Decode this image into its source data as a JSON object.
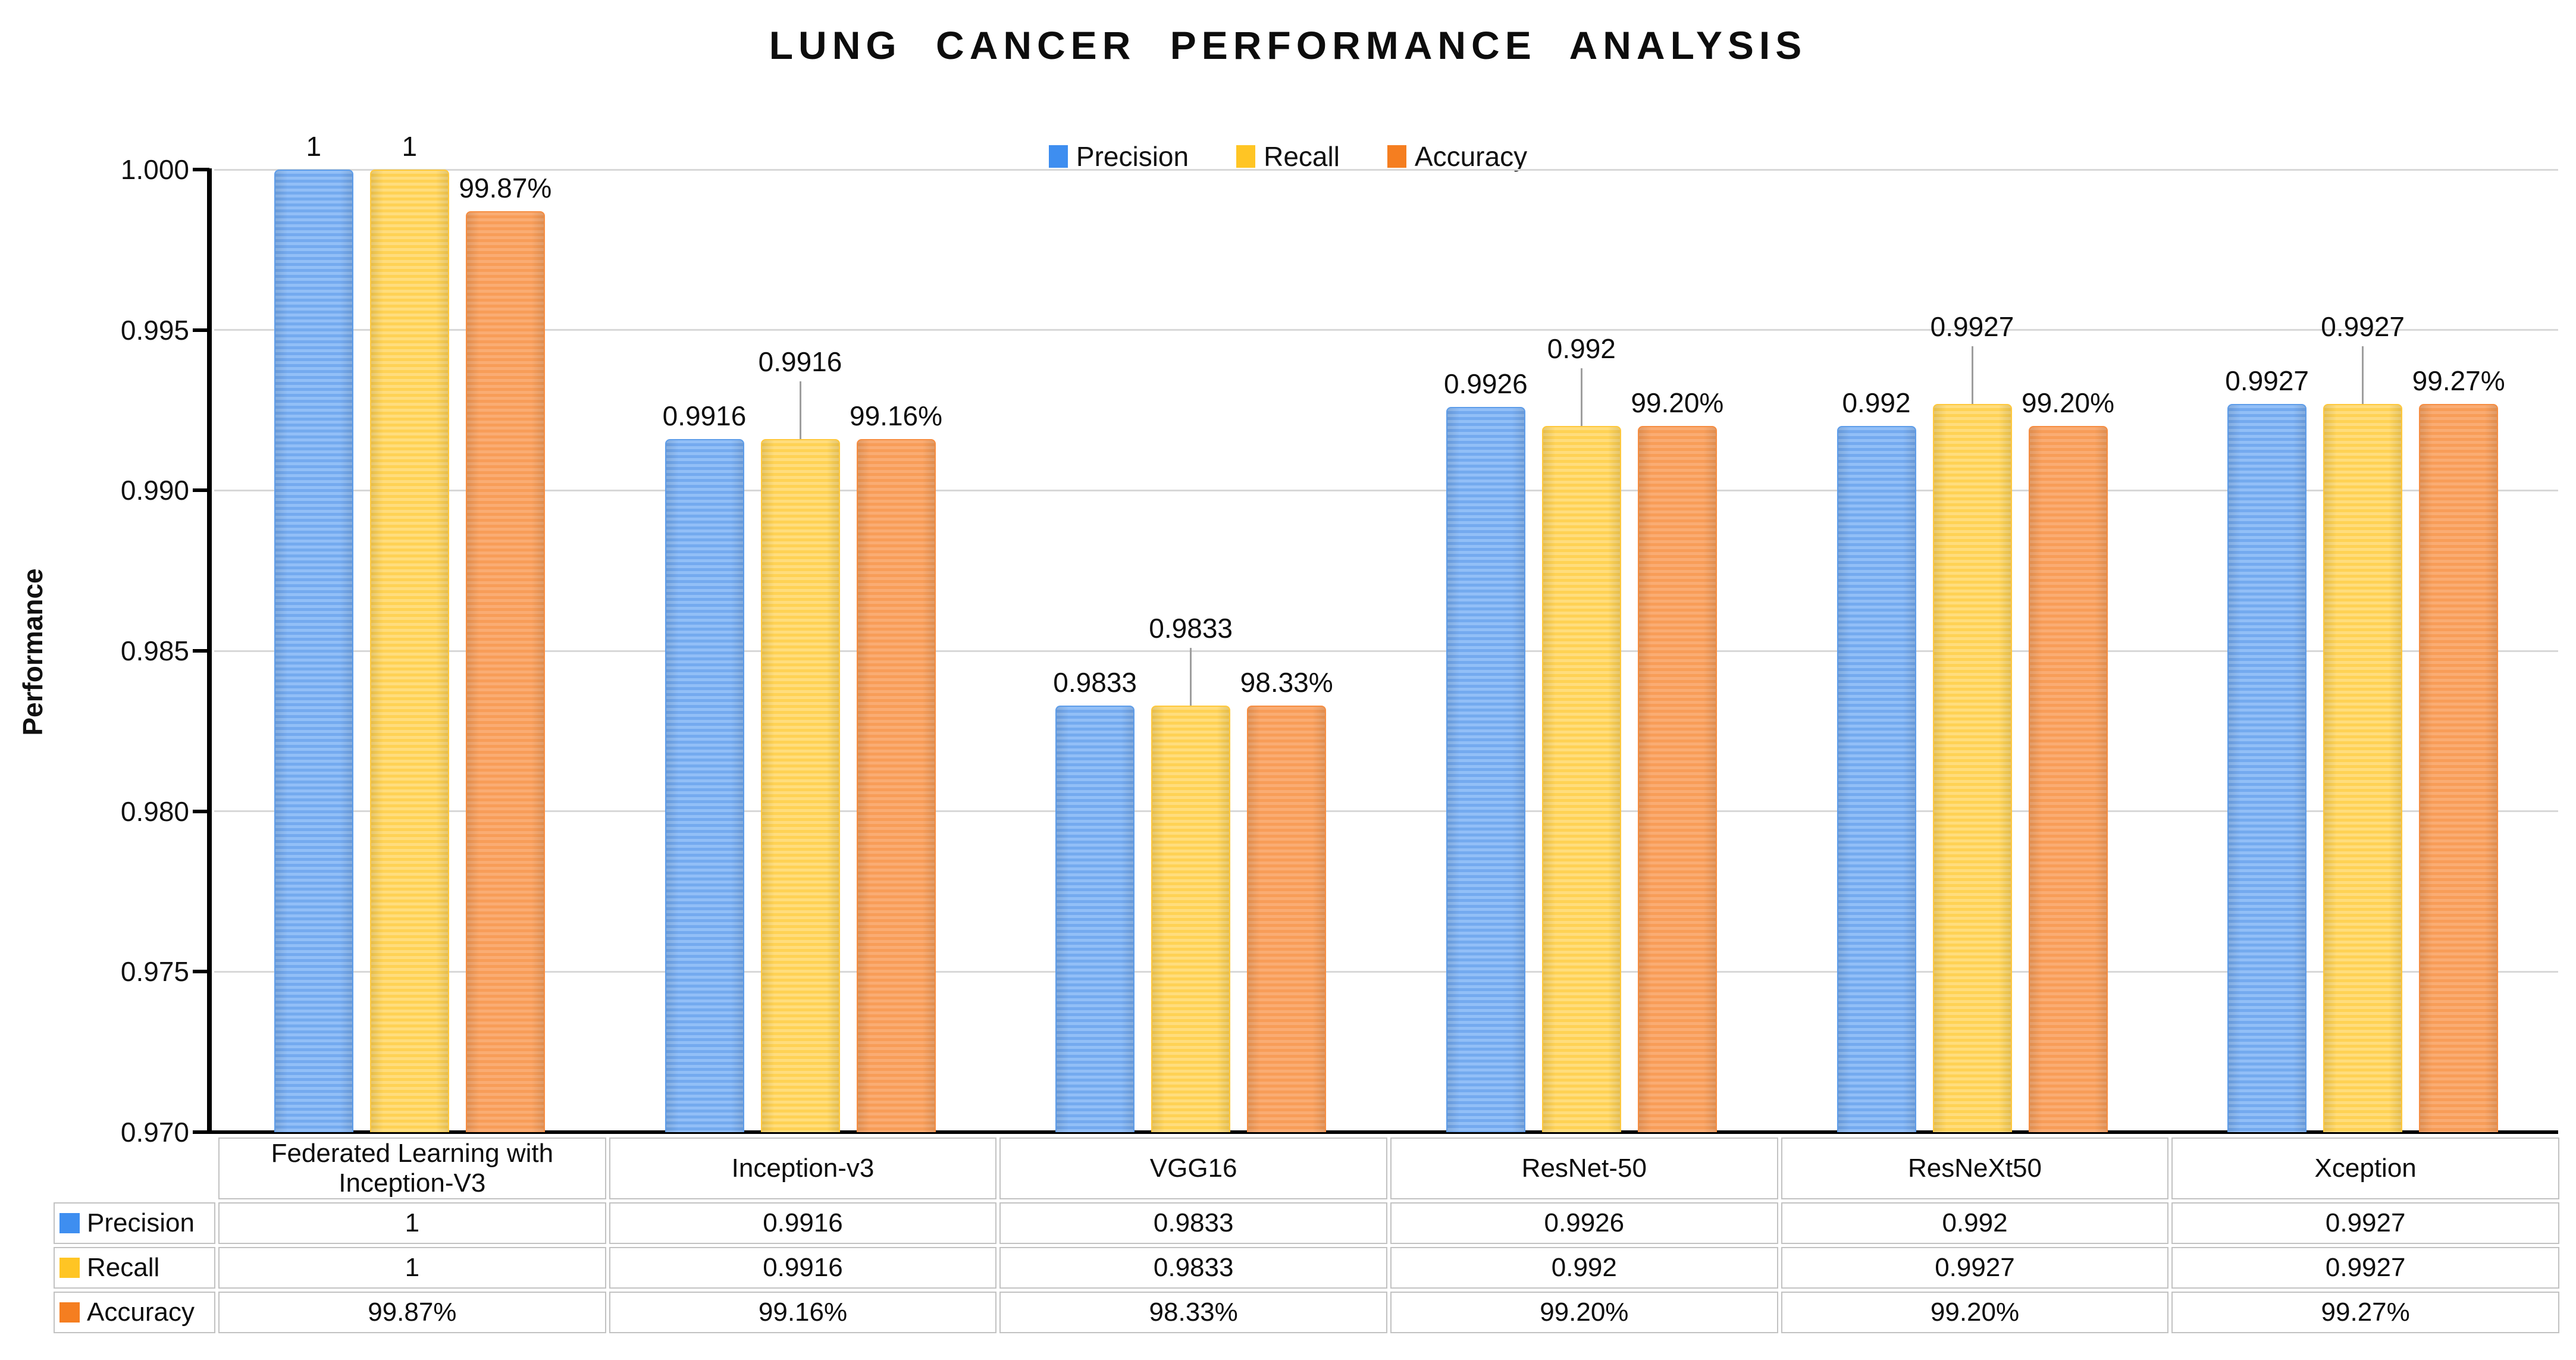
{
  "title": "LUNG CANCER PERFORMANCE ANALYSIS",
  "y_axis": {
    "label": "Performance",
    "ticks": [
      "1.000",
      "0.995",
      "0.990",
      "0.985",
      "0.980",
      "0.975",
      "0.970"
    ]
  },
  "legend": [
    "Precision",
    "Recall",
    "Accuracy"
  ],
  "colors": {
    "precision": {
      "key": "#3E8EF0",
      "bar_light": "#92BFF7",
      "bar_dark": "#74AAEF",
      "bar_edge": "#5E9DE9"
    },
    "recall": {
      "key": "#FFC524",
      "bar_light": "#FFDD7D",
      "bar_dark": "#FFD254",
      "bar_edge": "#FFC83C"
    },
    "accuracy": {
      "key": "#F57E20",
      "bar_light": "#FAAC73",
      "bar_dark": "#F89D58",
      "bar_edge": "#F68D41"
    },
    "gridline": "#D8D8D8",
    "axis": "#000000",
    "leader_line": "#9E9E9E",
    "table_border": "#C2C2C2"
  },
  "chart_data": {
    "type": "bar",
    "title": "LUNG CANCER PERFORMANCE ANALYSIS",
    "categories": [
      "Federated Learning with Inception-V3",
      "Inception-v3",
      "VGG16",
      "ResNet-50",
      "ResNeXt50",
      "Xception"
    ],
    "series": [
      {
        "name": "Precision",
        "values": [
          1,
          0.9916,
          0.9833,
          0.9926,
          0.992,
          0.9927
        ],
        "labels": [
          "1",
          "0.9916",
          "0.9833",
          "0.9926",
          "0.992",
          "0.9927"
        ]
      },
      {
        "name": "Recall",
        "values": [
          1,
          0.9916,
          0.9833,
          0.992,
          0.9927,
          0.9927
        ],
        "labels": [
          "1",
          "0.9916",
          "0.9833",
          "0.992",
          "0.9927",
          "0.9927"
        ]
      },
      {
        "name": "Accuracy",
        "values": [
          0.9987,
          0.9916,
          0.9833,
          0.992,
          0.992,
          0.9927
        ],
        "labels": [
          "99.87%",
          "99.16%",
          "98.33%",
          "99.20%",
          "99.20%",
          "99.27%"
        ]
      }
    ],
    "xlabel": "",
    "ylabel": "Performance",
    "ylim": [
      0.97,
      1.0
    ],
    "ytick_step": 0.005,
    "grid": true,
    "legend_position": "top-center"
  },
  "table": {
    "row_headers": [
      "Precision",
      "Recall",
      "Accuracy"
    ],
    "columns": [
      "Federated Learning with Inception-V3",
      "Inception-v3",
      "VGG16",
      "ResNet-50",
      "ResNeXt50",
      "Xception"
    ],
    "rows": [
      [
        "1",
        "0.9916",
        "0.9833",
        "0.9926",
        "0.992",
        "0.9927"
      ],
      [
        "1",
        "0.9916",
        "0.9833",
        "0.992",
        "0.9927",
        "0.9927"
      ],
      [
        "99.87%",
        "99.16%",
        "98.33%",
        "99.20%",
        "99.20%",
        "99.27%"
      ]
    ]
  }
}
